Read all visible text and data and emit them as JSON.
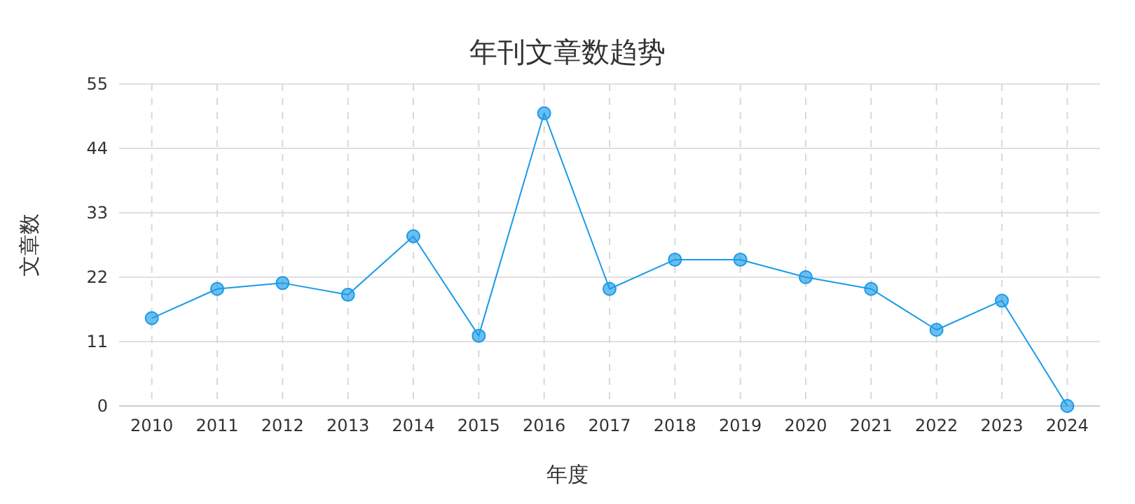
{
  "chart_data": {
    "type": "line",
    "title": "年刊文章数趋势",
    "xlabel": "年度",
    "ylabel": "文章数",
    "categories": [
      "2010",
      "2011",
      "2012",
      "2013",
      "2014",
      "2015",
      "2016",
      "2017",
      "2018",
      "2019",
      "2020",
      "2021",
      "2022",
      "2023",
      "2024"
    ],
    "series": [
      {
        "color": "#1a9be8",
        "values": [
          15,
          20,
          21,
          19,
          29,
          12,
          50,
          20,
          25,
          25,
          22,
          20,
          13,
          18,
          0
        ]
      }
    ],
    "ylim": [
      0,
      55
    ],
    "yticks": [
      0,
      11,
      22,
      33,
      44,
      55
    ],
    "grid": true,
    "marker": "circle",
    "line_style": "solid"
  }
}
